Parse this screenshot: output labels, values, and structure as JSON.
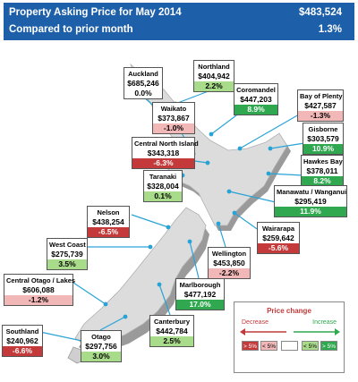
{
  "header": {
    "title_line1": "Property Asking Price for  May 2014",
    "title_line2": "Compared to prior month",
    "national_price": "$483,524",
    "national_change": "1.3%"
  },
  "regions": [
    {
      "id": "northland",
      "name": "Northland",
      "price": "$404,942",
      "change": "2.2%",
      "change_value": 2.2
    },
    {
      "id": "auckland",
      "name": "Auckland",
      "price": "$685,246",
      "change": "0.0%",
      "change_value": 0.0
    },
    {
      "id": "coromandel",
      "name": "Coromandel",
      "price": "$447,203",
      "change": "8.9%",
      "change_value": 8.9
    },
    {
      "id": "bay-of-plenty",
      "name": "Bay of Plenty",
      "price": "$427,587",
      "change": "-1.3%",
      "change_value": -1.3
    },
    {
      "id": "waikato",
      "name": "Waikato",
      "price": "$373,867",
      "change": "-1.0%",
      "change_value": -1.0
    },
    {
      "id": "gisborne",
      "name": "Gisborne",
      "price": "$303,579",
      "change": "10.9%",
      "change_value": 10.9
    },
    {
      "id": "central-north-island",
      "name": "Central North Island",
      "price": "$343,318",
      "change": "-6.3%",
      "change_value": -6.3
    },
    {
      "id": "hawkes-bay",
      "name": "Hawkes Bay",
      "price": "$378,011",
      "change": "8.2%",
      "change_value": 8.2
    },
    {
      "id": "taranaki",
      "name": "Taranaki",
      "price": "$328,004",
      "change": "0.1%",
      "change_value": 0.1
    },
    {
      "id": "manawatu-wanganui",
      "name": "Manawatu / Wanganui",
      "price": "$295,419",
      "change": "11.9%",
      "change_value": 11.9
    },
    {
      "id": "nelson",
      "name": "Nelson",
      "price": "$438,254",
      "change": "-6.5%",
      "change_value": -6.5
    },
    {
      "id": "wairarapa",
      "name": "Wairarapa",
      "price": "$259,642",
      "change": "-5.6%",
      "change_value": -5.6
    },
    {
      "id": "west-coast",
      "name": "West Coast",
      "price": "$275,739",
      "change": "3.5%",
      "change_value": 3.5
    },
    {
      "id": "wellington",
      "name": "Wellington",
      "price": "$453,850",
      "change": "-2.2%",
      "change_value": -2.2
    },
    {
      "id": "central-otago-lakes",
      "name": "Central Otago / Lakes",
      "price": "$606,088",
      "change": "-1.2%",
      "change_value": -1.2
    },
    {
      "id": "marlborough",
      "name": "Marlborough",
      "price": "$477,192",
      "change": "17.0%",
      "change_value": 17.0
    },
    {
      "id": "southland",
      "name": "Southland",
      "price": "$240,962",
      "change": "-6.6%",
      "change_value": -6.6
    },
    {
      "id": "otago",
      "name": "Otago",
      "price": "$297,756",
      "change": "3.0%",
      "change_value": 3.0
    },
    {
      "id": "canterbury",
      "name": "Canterbury",
      "price": "$442,784",
      "change": "2.5%",
      "change_value": 2.5
    }
  ],
  "legend": {
    "title": "Price change",
    "decrease_label": "Decrease",
    "increase_label": "Increase",
    "swatches": [
      "> 5%",
      "< 5%",
      "< 5%",
      "> 5%"
    ]
  },
  "colors": {
    "header_bg": "#1d5fa8",
    "large_increase": "#2fa84f",
    "small_increase": "#a9dc8a",
    "small_decrease": "#f2b8b8",
    "large_decrease": "#c43a3a",
    "land": "#dcdcdc",
    "land_edge": "#9a9a9a",
    "leader_line": "#29a3d6"
  }
}
